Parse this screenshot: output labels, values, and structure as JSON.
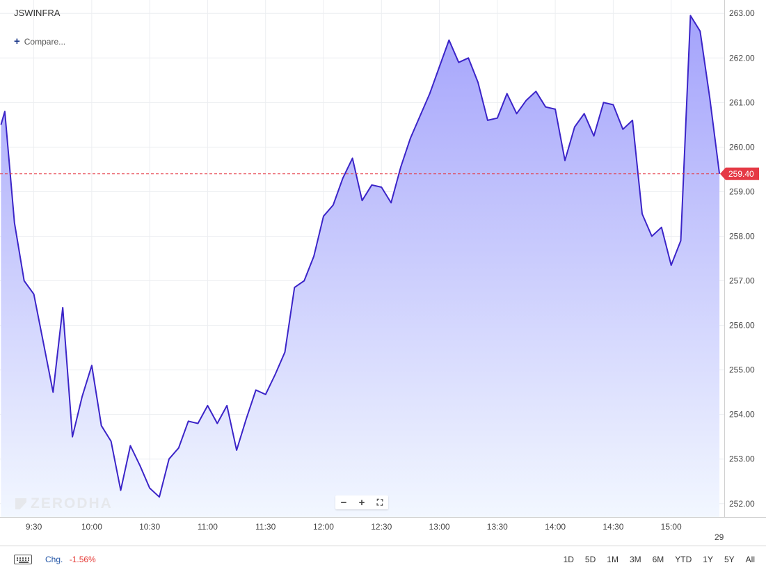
{
  "header": {
    "symbol": "JSWINFRA",
    "compare_label": "Compare..."
  },
  "watermark": {
    "text": "ZERODHA"
  },
  "zoom": {
    "minus": "−",
    "plus": "+",
    "fullscreen": "⛶"
  },
  "footer": {
    "keyboard_icon": "keyboard-icon",
    "change_label": "Chg.",
    "change_value": "-1.56%",
    "ranges": [
      "1D",
      "5D",
      "1M",
      "3M",
      "6M",
      "YTD",
      "1Y",
      "5Y",
      "All"
    ]
  },
  "colors": {
    "line": "#3b24c8",
    "area_top": "#a4a3fb",
    "area_bottom": "#f2f7ff",
    "current_price": "#e53945",
    "grid": "#eceef1"
  },
  "chart_data": {
    "type": "area",
    "title": "JSWINFRA",
    "current_price": 259.4,
    "current_price_label": "259.40",
    "ylim": [
      251.7,
      263.3
    ],
    "y_ticks": [
      252,
      253,
      254,
      255,
      256,
      257,
      258,
      259,
      260,
      261,
      262,
      263
    ],
    "y_tick_labels": [
      "252.00",
      "253.00",
      "254.00",
      "255.00",
      "256.00",
      "257.00",
      "258.00",
      "259.00",
      "260.00",
      "261.00",
      "262.00",
      "263.00"
    ],
    "x_ticks": [
      "9:30",
      "10:00",
      "10:30",
      "11:00",
      "11:30",
      "12:00",
      "12:30",
      "13:00",
      "13:30",
      "14:00",
      "14:30",
      "15:00"
    ],
    "x_tick_minutes": [
      570,
      600,
      630,
      660,
      690,
      720,
      750,
      780,
      810,
      840,
      870,
      900
    ],
    "x_edge_label": "29",
    "xlim_minutes": [
      552.5,
      927.5
    ],
    "grid": true,
    "series": [
      {
        "minutes": [
          553,
          555,
          560,
          565,
          570,
          575,
          580,
          585,
          590,
          595,
          600,
          605,
          610,
          615,
          620,
          625,
          630,
          635,
          640,
          645,
          650,
          655,
          660,
          665,
          670,
          675,
          680,
          685,
          690,
          695,
          700,
          705,
          710,
          715,
          720,
          725,
          730,
          735,
          740,
          745,
          750,
          755,
          760,
          765,
          770,
          775,
          780,
          785,
          790,
          795,
          800,
          805,
          810,
          815,
          820,
          825,
          830,
          835,
          840,
          845,
          850,
          855,
          860,
          865,
          870,
          875,
          880,
          885,
          890,
          895,
          900,
          905,
          910,
          915,
          920,
          925
        ],
        "values": [
          260.5,
          260.8,
          258.3,
          257.0,
          256.7,
          255.6,
          254.5,
          256.4,
          253.5,
          254.4,
          255.1,
          253.75,
          253.4,
          252.3,
          253.3,
          252.85,
          252.35,
          252.15,
          253.0,
          253.25,
          253.85,
          253.8,
          254.2,
          253.8,
          254.2,
          253.2,
          253.9,
          254.55,
          254.45,
          254.9,
          255.4,
          256.85,
          257.0,
          257.55,
          258.45,
          258.7,
          259.3,
          259.75,
          258.8,
          259.15,
          259.1,
          258.75,
          259.55,
          260.2,
          260.7,
          261.2,
          261.8,
          262.4,
          261.9,
          262.0,
          261.45,
          260.6,
          260.65,
          261.2,
          260.75,
          261.05,
          261.25,
          260.9,
          260.85,
          259.7,
          260.45,
          260.75,
          260.25,
          261.0,
          260.95,
          260.4,
          260.6,
          258.5,
          258.0,
          258.2,
          257.35,
          257.9,
          262.95,
          262.6,
          261.1,
          259.4
        ]
      }
    ]
  }
}
